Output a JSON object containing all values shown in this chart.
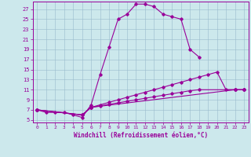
{
  "xlabel": "Windchill (Refroidissement éolien,°C)",
  "bg_color": "#cce8ec",
  "line_color": "#990099",
  "grid_color": "#99bbcc",
  "xlim": [
    -0.5,
    23.5
  ],
  "ylim": [
    4.5,
    28.5
  ],
  "xticks": [
    0,
    1,
    2,
    3,
    4,
    5,
    6,
    7,
    8,
    9,
    10,
    11,
    12,
    13,
    14,
    15,
    16,
    17,
    18,
    19,
    20,
    21,
    22,
    23
  ],
  "yticks": [
    5,
    7,
    9,
    11,
    13,
    15,
    17,
    19,
    21,
    23,
    25,
    27
  ],
  "series": [
    {
      "x": [
        0,
        1,
        2,
        3,
        4,
        5,
        6,
        7,
        8,
        9,
        10,
        11,
        12,
        13,
        14,
        15,
        16,
        17,
        18
      ],
      "y": [
        7,
        6.5,
        6.5,
        6.5,
        6,
        5.5,
        8,
        14,
        19.5,
        25,
        26,
        28,
        28,
        27.5,
        26,
        25.5,
        25,
        19,
        17.5
      ]
    },
    {
      "x": [
        0,
        5,
        6,
        7,
        8,
        9,
        10,
        11,
        12,
        13,
        14,
        15,
        16,
        17,
        18,
        19,
        20,
        21,
        22,
        23
      ],
      "y": [
        7,
        6,
        7.5,
        8,
        8.5,
        9,
        9.5,
        10,
        10.5,
        11,
        11.5,
        12,
        12.5,
        13,
        13.5,
        14,
        14.5,
        11,
        11,
        11
      ]
    },
    {
      "x": [
        0,
        5,
        6,
        7,
        8,
        9,
        10,
        11,
        12,
        13,
        14,
        15,
        16,
        17,
        18,
        22,
        23
      ],
      "y": [
        7,
        6,
        7.5,
        7.8,
        8.1,
        8.4,
        8.7,
        9,
        9.3,
        9.6,
        9.9,
        10.2,
        10.5,
        10.8,
        11,
        11,
        11
      ]
    },
    {
      "x": [
        0,
        5,
        6,
        22,
        23
      ],
      "y": [
        7,
        6,
        7.5,
        11,
        11
      ]
    }
  ]
}
